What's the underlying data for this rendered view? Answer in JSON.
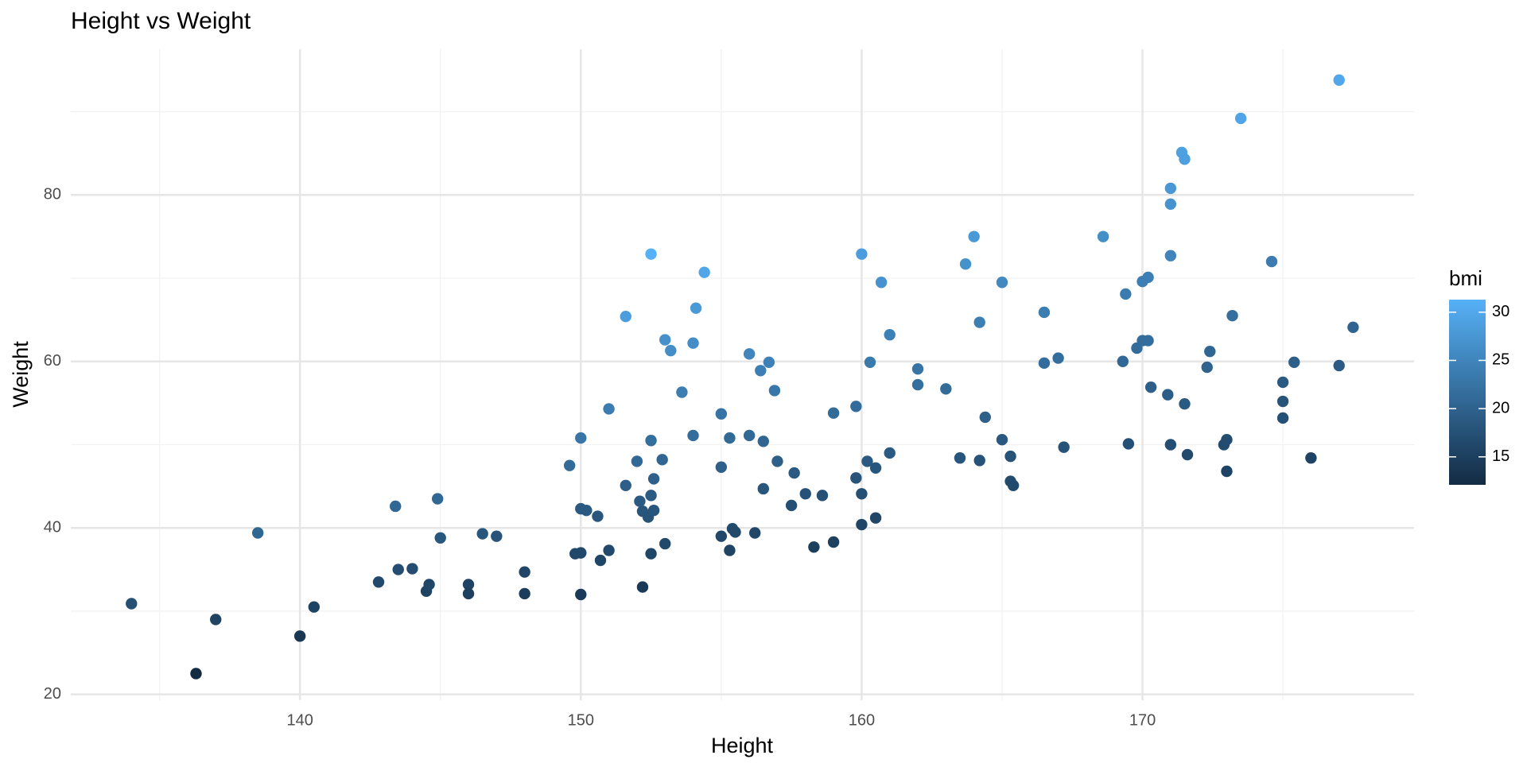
{
  "chart_data": {
    "type": "scatter",
    "title": "Height vs Weight",
    "x_label": "Height",
    "y_label": "Weight",
    "x": [
      134.0,
      136.3,
      137.0,
      138.5,
      140.0,
      140.5,
      142.8,
      143.4,
      143.5,
      144.0,
      144.5,
      144.6,
      144.9,
      145.0,
      146.0,
      146.0,
      146.5,
      147.0,
      148.0,
      148.0,
      149.6,
      149.8,
      150.0,
      150.0,
      150.0,
      150.0,
      150.2,
      150.6,
      150.7,
      151.0,
      151.0,
      151.6,
      151.6,
      152.0,
      152.1,
      152.2,
      152.2,
      152.4,
      152.5,
      152.5,
      152.5,
      152.5,
      152.6,
      152.6,
      152.9,
      153.0,
      153.0,
      153.2,
      153.6,
      154.0,
      154.0,
      154.1,
      154.4,
      155.0,
      155.0,
      155.0,
      155.3,
      155.3,
      155.4,
      155.5,
      156.0,
      156.0,
      156.2,
      156.4,
      156.5,
      156.5,
      156.7,
      156.9,
      157.0,
      157.5,
      157.6,
      158.0,
      158.3,
      158.6,
      159.0,
      159.0,
      159.8,
      159.8,
      160.0,
      160.0,
      160.0,
      160.2,
      160.3,
      160.5,
      160.5,
      160.7,
      161.0,
      161.0,
      162.0,
      162.0,
      163.0,
      163.5,
      163.7,
      164.0,
      164.2,
      164.2,
      164.4,
      165.0,
      165.0,
      165.3,
      165.3,
      165.4,
      166.5,
      166.5,
      167.0,
      167.2,
      168.6,
      169.3,
      169.4,
      169.5,
      169.8,
      170.0,
      170.0,
      170.2,
      170.2,
      170.3,
      170.9,
      171.0,
      171.0,
      171.0,
      171.0,
      171.4,
      171.5,
      171.5,
      171.6,
      172.3,
      172.4,
      172.9,
      173.0,
      173.0,
      173.2,
      173.5,
      174.6,
      175.0,
      175.0,
      175.0,
      175.4,
      176.0,
      177.0,
      177.0,
      177.5
    ],
    "values": [
      30.9,
      22.5,
      29.0,
      39.4,
      27.0,
      30.5,
      33.5,
      42.6,
      35.0,
      35.1,
      32.4,
      33.2,
      43.5,
      38.8,
      33.2,
      32.1,
      39.3,
      39.0,
      34.7,
      32.1,
      47.5,
      36.9,
      50.8,
      42.3,
      37.0,
      32.0,
      42.1,
      41.4,
      36.1,
      37.3,
      54.3,
      65.4,
      45.1,
      48.0,
      43.2,
      42.0,
      32.9,
      41.3,
      72.9,
      50.5,
      43.9,
      36.9,
      45.9,
      42.1,
      48.2,
      38.1,
      62.6,
      61.3,
      56.3,
      62.2,
      51.1,
      66.4,
      70.7,
      53.7,
      47.3,
      39.0,
      50.8,
      37.3,
      39.9,
      39.5,
      60.9,
      51.1,
      39.4,
      58.9,
      50.4,
      44.7,
      59.9,
      56.5,
      48.0,
      42.7,
      46.6,
      44.1,
      37.7,
      43.9,
      53.8,
      38.3,
      54.6,
      46.0,
      72.9,
      44.1,
      40.4,
      48.0,
      59.9,
      47.2,
      41.2,
      69.5,
      63.2,
      49.0,
      59.1,
      57.2,
      56.7,
      48.4,
      71.7,
      75.0,
      64.7,
      48.1,
      53.3,
      69.5,
      50.6,
      48.6,
      45.6,
      45.1,
      65.9,
      59.8,
      60.4,
      49.7,
      75.0,
      60.0,
      68.1,
      50.1,
      61.6,
      62.5,
      69.6,
      62.5,
      70.1,
      56.9,
      56.0,
      50.0,
      80.8,
      78.9,
      72.7,
      85.1,
      84.3,
      54.9,
      48.8,
      59.3,
      61.2,
      50.0,
      50.6,
      46.8,
      65.5,
      89.2,
      72.0,
      57.5,
      55.2,
      53.2,
      59.9,
      48.4,
      93.8,
      59.5,
      64.1
    ],
    "color_scale": {
      "name": "bmi",
      "low": "#132B43",
      "high": "#56B1F7",
      "lim": [
        12.1,
        31.3
      ],
      "ticks": [
        15,
        20,
        25,
        30
      ],
      "values": [
        17.2,
        12.1,
        15.5,
        20.5,
        13.8,
        15.5,
        16.4,
        20.7,
        17.0,
        16.9,
        15.5,
        15.9,
        20.7,
        18.5,
        15.6,
        15.1,
        18.3,
        18.0,
        15.8,
        14.7,
        21.2,
        16.4,
        22.6,
        18.8,
        16.4,
        14.2,
        18.7,
        18.3,
        15.9,
        16.4,
        23.8,
        28.5,
        19.6,
        20.8,
        18.7,
        18.1,
        14.2,
        17.8,
        31.3,
        21.7,
        18.9,
        15.9,
        19.7,
        18.1,
        20.6,
        16.3,
        26.7,
        26.1,
        23.9,
        26.2,
        21.5,
        28.0,
        29.7,
        22.4,
        19.7,
        16.2,
        21.1,
        15.5,
        16.5,
        16.3,
        25.0,
        21.0,
        16.1,
        24.1,
        20.6,
        18.3,
        24.4,
        23.0,
        19.5,
        17.2,
        18.8,
        17.7,
        15.0,
        17.5,
        21.3,
        15.1,
        21.4,
        18.0,
        28.5,
        17.2,
        15.8,
        18.7,
        23.3,
        18.3,
        16.0,
        26.9,
        24.4,
        18.9,
        22.5,
        21.8,
        21.3,
        18.1,
        26.8,
        27.9,
        24.0,
        17.8,
        19.7,
        25.5,
        18.6,
        17.8,
        16.7,
        16.5,
        23.8,
        21.6,
        21.7,
        17.8,
        26.4,
        20.9,
        23.7,
        17.4,
        21.4,
        21.6,
        24.1,
        21.6,
        24.2,
        19.6,
        19.2,
        17.1,
        27.6,
        27.0,
        24.9,
        29.0,
        28.7,
        18.7,
        16.6,
        20.0,
        20.6,
        16.7,
        16.9,
        15.6,
        21.8,
        29.6,
        23.6,
        18.8,
        18.0,
        17.4,
        19.5,
        15.6,
        29.9,
        19.0,
        20.3
      ]
    },
    "xlim": [
      131.84,
      179.67
    ],
    "ylim": [
      19.3,
      97.5
    ],
    "xticks": [
      140,
      150,
      160,
      170
    ],
    "yticks": [
      20,
      40,
      60,
      80
    ],
    "xminor": [
      135,
      145,
      155,
      165,
      175
    ],
    "yminor": [
      30,
      50,
      70,
      90
    ],
    "grid": true
  }
}
